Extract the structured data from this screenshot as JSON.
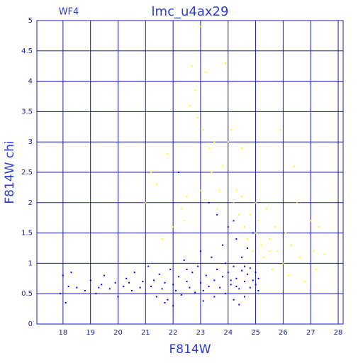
{
  "chart_data": {
    "type": "scatter",
    "panel_label": "WF4",
    "title": "lmc_u4ax29",
    "x_label": "F814W",
    "y_label": "F814W chi",
    "xlim": [
      17.05,
      28.18
    ],
    "ylim": [
      0,
      5
    ],
    "xticks": [
      18,
      19,
      20,
      21,
      22,
      23,
      24,
      25,
      26,
      27,
      28
    ],
    "yticks": [
      0,
      0.5,
      1,
      1.5,
      2,
      2.5,
      3,
      3.5,
      4,
      4.5,
      5
    ],
    "grid": true,
    "series": [
      {
        "color": "#0000ff",
        "x": [
          17.9,
          18.0,
          18.1,
          18.2,
          18.3,
          18.5,
          18.8,
          19.0,
          19.2,
          19.4,
          19.5,
          19.7,
          19.9,
          20.0,
          20.2,
          20.3,
          20.5,
          20.6,
          20.8,
          20.9,
          21.0,
          21.1,
          21.2,
          21.3,
          21.4,
          21.5,
          21.6,
          21.7,
          21.8,
          21.9,
          22.0,
          22.1,
          22.2,
          22.3,
          22.4,
          22.5,
          22.6,
          22.7,
          22.8,
          22.9,
          23.0,
          23.0,
          23.1,
          23.2,
          23.3,
          23.4,
          23.5,
          23.5,
          23.6,
          23.7,
          23.8,
          23.8,
          23.9,
          24.0,
          24.0,
          24.1,
          24.2,
          24.2,
          24.3,
          24.3,
          24.4,
          24.5,
          24.5,
          24.6,
          24.6,
          24.7,
          24.7,
          24.8,
          24.8,
          24.9,
          24.9,
          25.0,
          25.0,
          25.1,
          25.1,
          23.3,
          23.6,
          22.2,
          24.2,
          22.0,
          21.7,
          23.1,
          24.4,
          19.3,
          20.4,
          22.5,
          23.9,
          24.1,
          24.6,
          24.3
        ],
        "y": [
          0.5,
          0.8,
          0.35,
          0.62,
          0.85,
          0.6,
          0.55,
          0.72,
          0.5,
          0.65,
          0.8,
          0.58,
          0.68,
          0.45,
          0.62,
          0.75,
          0.55,
          0.85,
          0.6,
          0.7,
          0.5,
          0.95,
          0.62,
          0.72,
          0.45,
          0.82,
          0.58,
          0.68,
          0.4,
          0.9,
          0.65,
          0.55,
          0.78,
          0.48,
          1.05,
          0.7,
          0.6,
          0.85,
          0.52,
          0.95,
          0.68,
          1.2,
          0.55,
          0.8,
          0.62,
          1.1,
          0.72,
          0.45,
          0.9,
          0.6,
          1.3,
          0.78,
          0.5,
          0.85,
          1.6,
          0.65,
          0.95,
          0.4,
          0.75,
          1.4,
          0.58,
          0.88,
          1.1,
          0.7,
          0.45,
          0.82,
          1.25,
          0.6,
          0.92,
          0.72,
          1.5,
          0.65,
          0.85,
          0.75,
          0.55,
          2.0,
          1.8,
          2.5,
          1.7,
          0.3,
          0.35,
          0.38,
          0.32,
          0.6,
          0.68,
          0.9,
          1.0,
          0.72,
          0.95,
          0.62
        ]
      },
      {
        "color": "#ffff00",
        "x": [
          21.0,
          21.2,
          21.4,
          21.6,
          21.8,
          22.0,
          22.3,
          22.5,
          22.6,
          22.7,
          22.8,
          22.9,
          23.0,
          23.1,
          23.2,
          23.3,
          23.4,
          23.5,
          23.6,
          23.7,
          23.8,
          23.9,
          24.0,
          24.1,
          24.2,
          24.3,
          24.4,
          24.5,
          24.6,
          24.7,
          24.8,
          24.9,
          25.0,
          25.1,
          25.2,
          25.3,
          25.4,
          25.5,
          25.6,
          25.7,
          25.8,
          25.9,
          26.0,
          26.1,
          26.2,
          26.3,
          26.4,
          26.6,
          26.8,
          27.0,
          27.1,
          27.2,
          27.3,
          27.5,
          26.5,
          25.0,
          24.5,
          23.0,
          22.4,
          25.5
        ],
        "y": [
          2.0,
          2.5,
          2.3,
          1.4,
          2.8,
          1.6,
          1.9,
          2.1,
          3.6,
          4.25,
          3.85,
          3.4,
          4.9,
          3.2,
          4.15,
          2.9,
          2.5,
          3.0,
          1.9,
          2.2,
          2.6,
          4.3,
          3.0,
          3.2,
          2.0,
          2.2,
          1.8,
          2.1,
          1.6,
          1.4,
          1.8,
          1.2,
          1.5,
          1.7,
          1.3,
          1.1,
          1.9,
          1.4,
          0.9,
          1.6,
          1.2,
          3.2,
          1.0,
          1.5,
          0.8,
          1.3,
          2.6,
          1.1,
          0.7,
          1.7,
          1.2,
          0.9,
          1.6,
          1.15,
          2.0,
          2.0,
          2.9,
          2.2,
          1.7,
          1.2
        ]
      }
    ]
  }
}
